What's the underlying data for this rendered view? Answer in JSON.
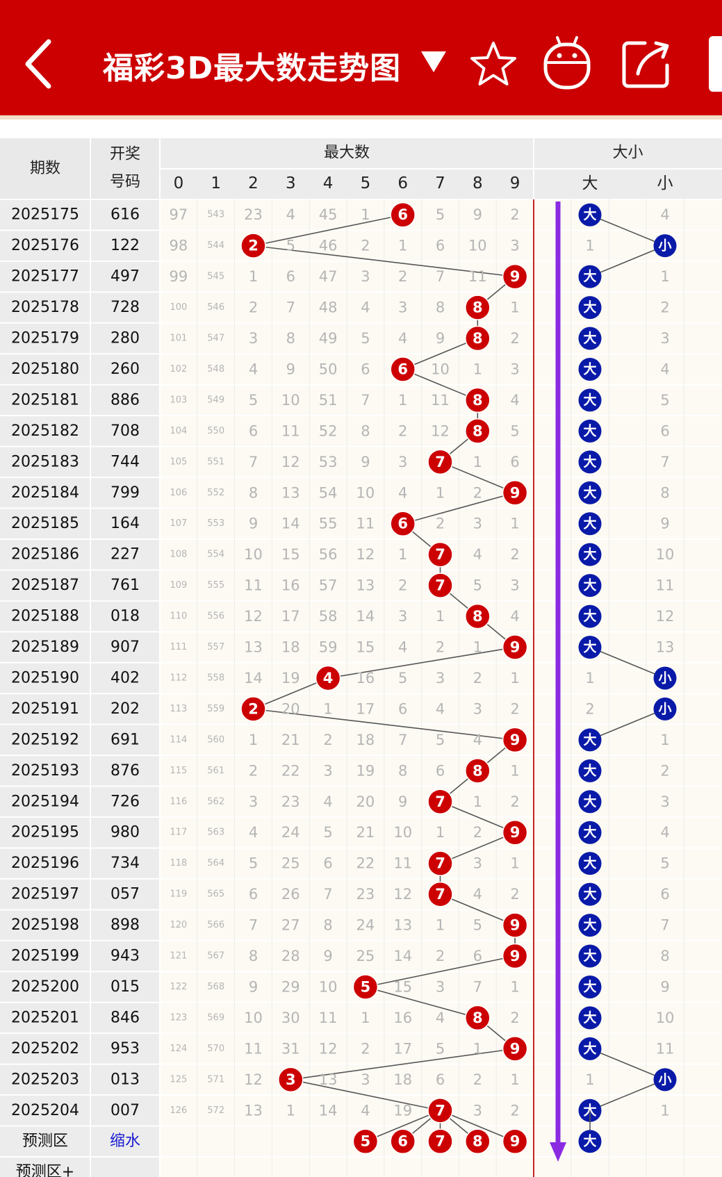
{
  "header": {
    "title": "福彩3D最大数走势图",
    "back_icon": "chevron-left-icon",
    "dropdown_icon": "caret-down-icon",
    "favorite_icon": "star-icon",
    "robot_icon": "robot-icon",
    "share_icon": "share-icon"
  },
  "table": {
    "col_period": "期数",
    "col_number_1": "开奖",
    "col_number_2": "号码",
    "group_max": "最大数",
    "group_size": "大小",
    "digits": [
      "0",
      "1",
      "2",
      "3",
      "4",
      "5",
      "6",
      "7",
      "8",
      "9"
    ],
    "size_big": "大",
    "size_small": "小",
    "rows": [
      {
        "period": "2025175",
        "number": "616",
        "miss": [
          "97",
          "543",
          "23",
          "4",
          "45",
          "1",
          "6",
          "5",
          "9",
          "2"
        ],
        "max": 6,
        "size": "大",
        "small_miss": "4"
      },
      {
        "period": "2025176",
        "number": "122",
        "miss": [
          "98",
          "544",
          "2",
          "5",
          "46",
          "2",
          "1",
          "6",
          "10",
          "3"
        ],
        "max": 2,
        "size": "小",
        "big_miss": "1"
      },
      {
        "period": "2025177",
        "number": "497",
        "miss": [
          "99",
          "545",
          "1",
          "6",
          "47",
          "3",
          "2",
          "7",
          "11",
          "9"
        ],
        "max": 9,
        "size": "大",
        "small_miss": "1"
      },
      {
        "period": "2025178",
        "number": "728",
        "miss": [
          "100",
          "546",
          "2",
          "7",
          "48",
          "4",
          "3",
          "8",
          "8",
          "1"
        ],
        "max": 8,
        "size": "大",
        "small_miss": "2"
      },
      {
        "period": "2025179",
        "number": "280",
        "miss": [
          "101",
          "547",
          "3",
          "8",
          "49",
          "5",
          "4",
          "9",
          "8",
          "2"
        ],
        "max": 8,
        "size": "大",
        "small_miss": "3"
      },
      {
        "period": "2025180",
        "number": "260",
        "miss": [
          "102",
          "548",
          "4",
          "9",
          "50",
          "6",
          "6",
          "10",
          "1",
          "3"
        ],
        "max": 6,
        "size": "大",
        "small_miss": "4"
      },
      {
        "period": "2025181",
        "number": "886",
        "miss": [
          "103",
          "549",
          "5",
          "10",
          "51",
          "7",
          "1",
          "11",
          "8",
          "4"
        ],
        "max": 8,
        "size": "大",
        "small_miss": "5"
      },
      {
        "period": "2025182",
        "number": "708",
        "miss": [
          "104",
          "550",
          "6",
          "11",
          "52",
          "8",
          "2",
          "12",
          "8",
          "5"
        ],
        "max": 8,
        "size": "大",
        "small_miss": "6"
      },
      {
        "period": "2025183",
        "number": "744",
        "miss": [
          "105",
          "551",
          "7",
          "12",
          "53",
          "9",
          "3",
          "7",
          "1",
          "6"
        ],
        "max": 7,
        "size": "大",
        "small_miss": "7"
      },
      {
        "period": "2025184",
        "number": "799",
        "miss": [
          "106",
          "552",
          "8",
          "13",
          "54",
          "10",
          "4",
          "1",
          "2",
          "9"
        ],
        "max": 9,
        "size": "大",
        "small_miss": "8"
      },
      {
        "period": "2025185",
        "number": "164",
        "miss": [
          "107",
          "553",
          "9",
          "14",
          "55",
          "11",
          "6",
          "2",
          "3",
          "1"
        ],
        "max": 6,
        "size": "大",
        "small_miss": "9"
      },
      {
        "period": "2025186",
        "number": "227",
        "miss": [
          "108",
          "554",
          "10",
          "15",
          "56",
          "12",
          "1",
          "7",
          "4",
          "2"
        ],
        "max": 7,
        "size": "大",
        "small_miss": "10"
      },
      {
        "period": "2025187",
        "number": "761",
        "miss": [
          "109",
          "555",
          "11",
          "16",
          "57",
          "13",
          "2",
          "7",
          "5",
          "3"
        ],
        "max": 7,
        "size": "大",
        "small_miss": "11"
      },
      {
        "period": "2025188",
        "number": "018",
        "miss": [
          "110",
          "556",
          "12",
          "17",
          "58",
          "14",
          "3",
          "1",
          "8",
          "4"
        ],
        "max": 8,
        "size": "大",
        "small_miss": "12"
      },
      {
        "period": "2025189",
        "number": "907",
        "miss": [
          "111",
          "557",
          "13",
          "18",
          "59",
          "15",
          "4",
          "2",
          "1",
          "9"
        ],
        "max": 9,
        "size": "大",
        "small_miss": "13"
      },
      {
        "period": "2025190",
        "number": "402",
        "miss": [
          "112",
          "558",
          "14",
          "19",
          "4",
          "16",
          "5",
          "3",
          "2",
          "1"
        ],
        "max": 4,
        "size": "小",
        "big_miss": "1"
      },
      {
        "period": "2025191",
        "number": "202",
        "miss": [
          "113",
          "559",
          "2",
          "20",
          "1",
          "17",
          "6",
          "4",
          "3",
          "2"
        ],
        "max": 2,
        "size": "小",
        "big_miss": "2"
      },
      {
        "period": "2025192",
        "number": "691",
        "miss": [
          "114",
          "560",
          "1",
          "21",
          "2",
          "18",
          "7",
          "5",
          "4",
          "9"
        ],
        "max": 9,
        "size": "大",
        "small_miss": "1"
      },
      {
        "period": "2025193",
        "number": "876",
        "miss": [
          "115",
          "561",
          "2",
          "22",
          "3",
          "19",
          "8",
          "6",
          "8",
          "1"
        ],
        "max": 8,
        "size": "大",
        "small_miss": "2"
      },
      {
        "period": "2025194",
        "number": "726",
        "miss": [
          "116",
          "562",
          "3",
          "23",
          "4",
          "20",
          "9",
          "7",
          "1",
          "2"
        ],
        "max": 7,
        "size": "大",
        "small_miss": "3"
      },
      {
        "period": "2025195",
        "number": "980",
        "miss": [
          "117",
          "563",
          "4",
          "24",
          "5",
          "21",
          "10",
          "1",
          "2",
          "9"
        ],
        "max": 9,
        "size": "大",
        "small_miss": "4"
      },
      {
        "period": "2025196",
        "number": "734",
        "miss": [
          "118",
          "564",
          "5",
          "25",
          "6",
          "22",
          "11",
          "7",
          "3",
          "1"
        ],
        "max": 7,
        "size": "大",
        "small_miss": "5"
      },
      {
        "period": "2025197",
        "number": "057",
        "miss": [
          "119",
          "565",
          "6",
          "26",
          "7",
          "23",
          "12",
          "7",
          "4",
          "2"
        ],
        "max": 7,
        "size": "大",
        "small_miss": "6"
      },
      {
        "period": "2025198",
        "number": "898",
        "miss": [
          "120",
          "566",
          "7",
          "27",
          "8",
          "24",
          "13",
          "1",
          "5",
          "9"
        ],
        "max": 9,
        "size": "大",
        "small_miss": "7"
      },
      {
        "period": "2025199",
        "number": "943",
        "miss": [
          "121",
          "567",
          "8",
          "28",
          "9",
          "25",
          "14",
          "2",
          "6",
          "9"
        ],
        "max": 9,
        "size": "大",
        "small_miss": "8"
      },
      {
        "period": "2025200",
        "number": "015",
        "miss": [
          "122",
          "568",
          "9",
          "29",
          "10",
          "5",
          "15",
          "3",
          "7",
          "1"
        ],
        "max": 5,
        "size": "大",
        "small_miss": "9"
      },
      {
        "period": "2025201",
        "number": "846",
        "miss": [
          "123",
          "569",
          "10",
          "30",
          "11",
          "1",
          "16",
          "4",
          "8",
          "2"
        ],
        "max": 8,
        "size": "大",
        "small_miss": "10"
      },
      {
        "period": "2025202",
        "number": "953",
        "miss": [
          "124",
          "570",
          "11",
          "31",
          "12",
          "2",
          "17",
          "5",
          "1",
          "9"
        ],
        "max": 9,
        "size": "大",
        "small_miss": "11"
      },
      {
        "period": "2025203",
        "number": "013",
        "miss": [
          "125",
          "571",
          "12",
          "3",
          "13",
          "3",
          "18",
          "6",
          "2",
          "1"
        ],
        "max": 3,
        "size": "小",
        "big_miss": "1"
      },
      {
        "period": "2025204",
        "number": "007",
        "miss": [
          "126",
          "572",
          "13",
          "1",
          "14",
          "4",
          "19",
          "7",
          "3",
          "2"
        ],
        "max": 7,
        "size": "大",
        "small_miss": "1"
      }
    ],
    "forecast": {
      "label": "预测区",
      "sub": "缩水",
      "balls": [
        "5",
        "6",
        "7",
        "8",
        "9"
      ],
      "size": "大"
    },
    "forecast_plus": {
      "label": "预测区+"
    }
  },
  "colors": {
    "header_red": "#cc0000",
    "ball_red": "#cc0000",
    "ball_blue": "#0a1aa8",
    "arrow": "#8a2be2",
    "link": "#1a1ad0"
  }
}
